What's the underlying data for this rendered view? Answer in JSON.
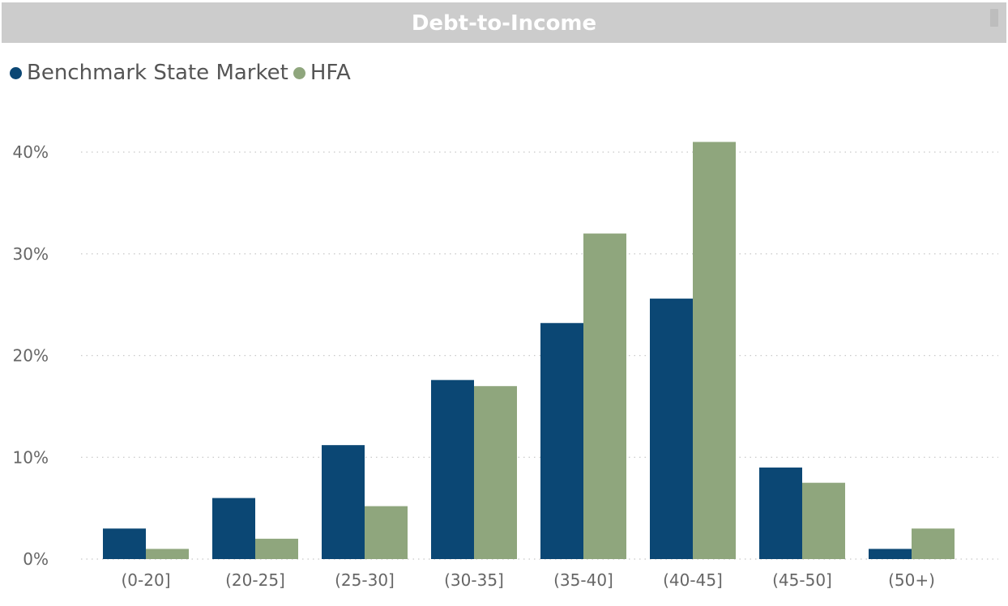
{
  "title": "Debt-to-Income",
  "colors": {
    "benchmark": "#0b4774",
    "hfa": "#8fa67d",
    "title_bar": "#cccccc",
    "grid": "#c8c8c8"
  },
  "legend": [
    {
      "name": "Benchmark State Market",
      "color": "#0b4774"
    },
    {
      "name": "HFA",
      "color": "#8fa67d"
    }
  ],
  "chart_data": {
    "type": "bar",
    "title": "Debt-to-Income",
    "categories": [
      "(0-20]",
      "(20-25]",
      "(25-30]",
      "(30-35]",
      "(35-40]",
      "(40-45]",
      "(45-50]",
      "(50+)"
    ],
    "series": [
      {
        "name": "Benchmark State Market",
        "values": [
          3.0,
          6.0,
          11.2,
          17.6,
          23.2,
          25.6,
          9.0,
          1.0
        ]
      },
      {
        "name": "HFA",
        "values": [
          1.0,
          2.0,
          5.2,
          17.0,
          32.0,
          41.0,
          7.5,
          3.0
        ]
      }
    ],
    "yticks": [
      "0%",
      "10%",
      "20%",
      "30%",
      "40%"
    ],
    "ylim": [
      0,
      40
    ],
    "xlabel": "",
    "ylabel": "",
    "grid": true,
    "legend_position": "top-left"
  }
}
